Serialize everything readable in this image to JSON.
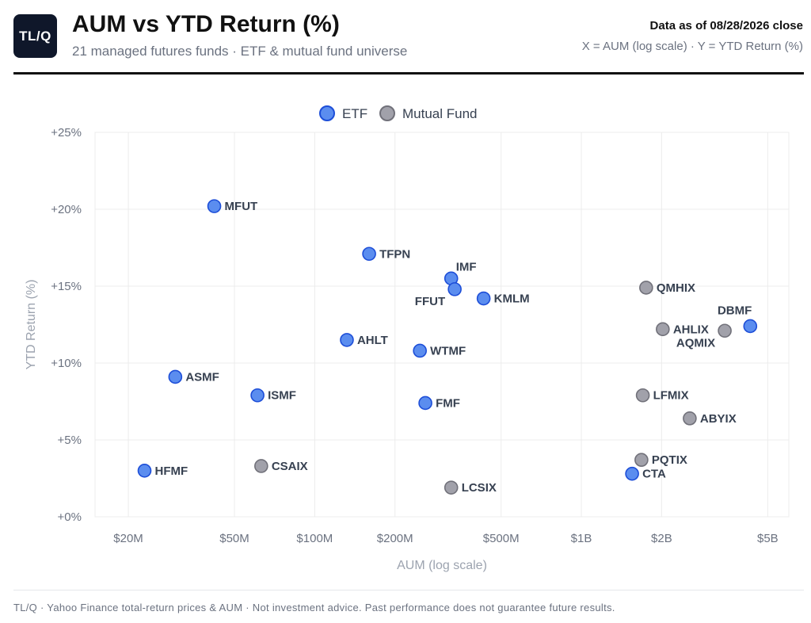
{
  "header": {
    "logo_text": "TL/Q",
    "title": "AUM vs YTD Return (%)",
    "subtitle": "21 managed futures funds · ETF & mutual fund universe",
    "as_of": "Data as of 08/28/2026 close",
    "axes_note": "X = AUM (log scale) · Y = YTD Return (%)"
  },
  "footer": {
    "text": "TL/Q · Yahoo Finance total-return prices & AUM · Not investment advice. Past performance does not guarantee future results."
  },
  "colors": {
    "etf_fill": "#5b8def",
    "etf_stroke": "#1d4ed8",
    "mf_fill": "#a1a1aa",
    "mf_stroke": "#71717a",
    "grid": "#ececec",
    "label": "#374151",
    "tick": "#6b7280"
  },
  "chart_data": {
    "type": "scatter",
    "xlabel": "AUM (log scale)",
    "ylabel": "YTD Return (%)",
    "x_scale": "log",
    "x_unit": "USD",
    "xlim": [
      15000000,
      6000000000
    ],
    "ylim": [
      0,
      25
    ],
    "x_ticks": [
      {
        "value": 20000000,
        "label": "$20M"
      },
      {
        "value": 50000000,
        "label": "$50M"
      },
      {
        "value": 100000000,
        "label": "$100M"
      },
      {
        "value": 200000000,
        "label": "$200M"
      },
      {
        "value": 500000000,
        "label": "$500M"
      },
      {
        "value": 1000000000,
        "label": "$1B"
      },
      {
        "value": 2000000000,
        "label": "$2B"
      },
      {
        "value": 5000000000,
        "label": "$5B"
      }
    ],
    "y_ticks": [
      {
        "value": 0,
        "label": "+0%"
      },
      {
        "value": 5,
        "label": "+5%"
      },
      {
        "value": 10,
        "label": "+10%"
      },
      {
        "value": 15,
        "label": "+15%"
      },
      {
        "value": 20,
        "label": "+20%"
      },
      {
        "value": 25,
        "label": "+25%"
      }
    ],
    "grid": true,
    "legend_position": "top-center",
    "series": [
      {
        "name": "ETF",
        "points": [
          {
            "label": "MFUT",
            "x": 42000000,
            "y": 20.2,
            "label_pos": "right"
          },
          {
            "label": "TFPN",
            "x": 160000000,
            "y": 17.1,
            "label_pos": "right"
          },
          {
            "label": "IMF",
            "x": 325000000,
            "y": 15.5,
            "label_pos": "above-right"
          },
          {
            "label": "FFUT",
            "x": 335000000,
            "y": 14.8,
            "label_pos": "below-left"
          },
          {
            "label": "KMLM",
            "x": 430000000,
            "y": 14.2,
            "label_pos": "right"
          },
          {
            "label": "DBMF",
            "x": 4300000000,
            "y": 12.4,
            "label_pos": "above-left"
          },
          {
            "label": "AHLT",
            "x": 132000000,
            "y": 11.5,
            "label_pos": "right"
          },
          {
            "label": "WTMF",
            "x": 248000000,
            "y": 10.8,
            "label_pos": "right"
          },
          {
            "label": "ASMF",
            "x": 30000000,
            "y": 9.1,
            "label_pos": "right"
          },
          {
            "label": "ISMF",
            "x": 61000000,
            "y": 7.9,
            "label_pos": "right"
          },
          {
            "label": "FMF",
            "x": 260000000,
            "y": 7.4,
            "label_pos": "right"
          },
          {
            "label": "HFMF",
            "x": 23000000,
            "y": 3.0,
            "label_pos": "right"
          },
          {
            "label": "CTA",
            "x": 1550000000,
            "y": 2.8,
            "label_pos": "right"
          }
        ]
      },
      {
        "name": "Mutual Fund",
        "points": [
          {
            "label": "QMHIX",
            "x": 1750000000,
            "y": 14.9,
            "label_pos": "right"
          },
          {
            "label": "AHLIX",
            "x": 2020000000,
            "y": 12.2,
            "label_pos": "right"
          },
          {
            "label": "AQMIX",
            "x": 3450000000,
            "y": 12.1,
            "label_pos": "below-left"
          },
          {
            "label": "LFMIX",
            "x": 1700000000,
            "y": 7.9,
            "label_pos": "right"
          },
          {
            "label": "ABYIX",
            "x": 2550000000,
            "y": 6.4,
            "label_pos": "right"
          },
          {
            "label": "PQTIX",
            "x": 1680000000,
            "y": 3.7,
            "label_pos": "right"
          },
          {
            "label": "CSAIX",
            "x": 63000000,
            "y": 3.3,
            "label_pos": "right"
          },
          {
            "label": "LCSIX",
            "x": 325000000,
            "y": 1.9,
            "label_pos": "right"
          }
        ]
      }
    ]
  }
}
